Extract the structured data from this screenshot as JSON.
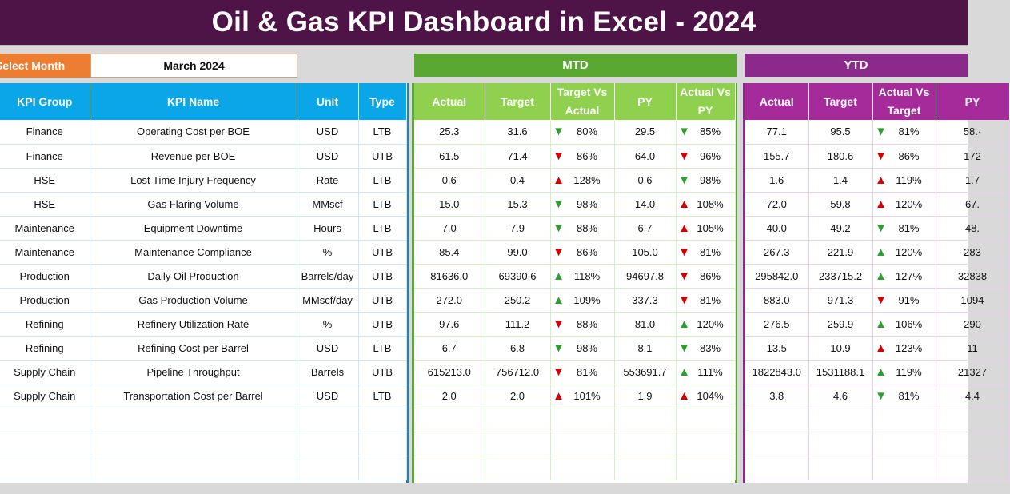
{
  "title": "Oil & Gas KPI Dashboard in Excel - 2024",
  "select_month": {
    "label": "Select Month",
    "value": "March 2024"
  },
  "sections": {
    "mtd": "MTD",
    "ytd": "YTD"
  },
  "left_headers": [
    "KPI Group",
    "KPI Name",
    "Unit",
    "Type"
  ],
  "mtd_headers": [
    "Actual",
    "Target",
    "Target Vs\nActual",
    "PY",
    "Actual Vs\nPY"
  ],
  "ytd_headers": [
    "Actual",
    "Target",
    "Actual Vs\nTarget",
    "PY"
  ],
  "colors": {
    "banner": "#4e1447",
    "select": "#ed7d31",
    "kpi_header": "#0aa6e8",
    "mtd": "#5aa832",
    "mtd_header": "#8fd14f",
    "ytd": "#8b2a8b",
    "up_arrow": "#2e9e2e",
    "down_arrow": "#d40000"
  },
  "rows": [
    {
      "group": "Finance",
      "name": "Operating Cost per BOE",
      "unit": "USD",
      "type": "LTB",
      "mtd": {
        "actual": "25.3",
        "target": "31.6",
        "tva_dir": "down",
        "tva_color": "green",
        "tva": "80%",
        "py": "29.5",
        "avp_dir": "down",
        "avp_color": "green",
        "avp": "85%"
      },
      "ytd": {
        "actual": "77.1",
        "target": "95.5",
        "avt_dir": "down",
        "avt_color": "green",
        "avt": "81%",
        "py": "58.·"
      }
    },
    {
      "group": "Finance",
      "name": "Revenue per BOE",
      "unit": "USD",
      "type": "UTB",
      "mtd": {
        "actual": "61.5",
        "target": "71.4",
        "tva_dir": "down",
        "tva_color": "red",
        "tva": "86%",
        "py": "64.0",
        "avp_dir": "down",
        "avp_color": "red",
        "avp": "96%"
      },
      "ytd": {
        "actual": "155.7",
        "target": "180.6",
        "avt_dir": "down",
        "avt_color": "red",
        "avt": "86%",
        "py": "172"
      }
    },
    {
      "group": "HSE",
      "name": "Lost Time Injury Frequency",
      "unit": "Rate",
      "type": "LTB",
      "mtd": {
        "actual": "0.6",
        "target": "0.4",
        "tva_dir": "up",
        "tva_color": "red",
        "tva": "128%",
        "py": "0.6",
        "avp_dir": "down",
        "avp_color": "green",
        "avp": "98%"
      },
      "ytd": {
        "actual": "1.6",
        "target": "1.4",
        "avt_dir": "up",
        "avt_color": "red",
        "avt": "119%",
        "py": "1.7"
      }
    },
    {
      "group": "HSE",
      "name": "Gas Flaring Volume",
      "unit": "MMscf",
      "type": "LTB",
      "mtd": {
        "actual": "15.0",
        "target": "15.3",
        "tva_dir": "down",
        "tva_color": "green",
        "tva": "98%",
        "py": "14.0",
        "avp_dir": "up",
        "avp_color": "red",
        "avp": "108%"
      },
      "ytd": {
        "actual": "72.0",
        "target": "59.8",
        "avt_dir": "up",
        "avt_color": "red",
        "avt": "120%",
        "py": "67."
      }
    },
    {
      "group": "Maintenance",
      "name": "Equipment Downtime",
      "unit": "Hours",
      "type": "LTB",
      "mtd": {
        "actual": "7.0",
        "target": "7.9",
        "tva_dir": "down",
        "tva_color": "green",
        "tva": "88%",
        "py": "6.7",
        "avp_dir": "up",
        "avp_color": "red",
        "avp": "105%"
      },
      "ytd": {
        "actual": "40.0",
        "target": "49.2",
        "avt_dir": "down",
        "avt_color": "green",
        "avt": "81%",
        "py": "48."
      }
    },
    {
      "group": "Maintenance",
      "name": "Maintenance Compliance",
      "unit": "%",
      "type": "UTB",
      "mtd": {
        "actual": "85.4",
        "target": "99.0",
        "tva_dir": "down",
        "tva_color": "red",
        "tva": "86%",
        "py": "105.0",
        "avp_dir": "down",
        "avp_color": "red",
        "avp": "81%"
      },
      "ytd": {
        "actual": "267.3",
        "target": "221.9",
        "avt_dir": "up",
        "avt_color": "green",
        "avt": "120%",
        "py": "283"
      }
    },
    {
      "group": "Production",
      "name": "Daily Oil Production",
      "unit": "Barrels/day",
      "type": "UTB",
      "mtd": {
        "actual": "81636.0",
        "target": "69390.6",
        "tva_dir": "up",
        "tva_color": "green",
        "tva": "118%",
        "py": "94697.8",
        "avp_dir": "down",
        "avp_color": "red",
        "avp": "86%"
      },
      "ytd": {
        "actual": "295842.0",
        "target": "233715.2",
        "avt_dir": "up",
        "avt_color": "green",
        "avt": "127%",
        "py": "32838"
      }
    },
    {
      "group": "Production",
      "name": "Gas Production Volume",
      "unit": "MMscf/day",
      "type": "UTB",
      "mtd": {
        "actual": "272.0",
        "target": "250.2",
        "tva_dir": "up",
        "tva_color": "green",
        "tva": "109%",
        "py": "337.3",
        "avp_dir": "down",
        "avp_color": "red",
        "avp": "81%"
      },
      "ytd": {
        "actual": "883.0",
        "target": "971.3",
        "avt_dir": "down",
        "avt_color": "red",
        "avt": "91%",
        "py": "1094"
      }
    },
    {
      "group": "Refining",
      "name": "Refinery Utilization Rate",
      "unit": "%",
      "type": "UTB",
      "mtd": {
        "actual": "97.6",
        "target": "111.2",
        "tva_dir": "down",
        "tva_color": "red",
        "tva": "88%",
        "py": "81.0",
        "avp_dir": "up",
        "avp_color": "green",
        "avp": "120%"
      },
      "ytd": {
        "actual": "276.5",
        "target": "259.9",
        "avt_dir": "up",
        "avt_color": "green",
        "avt": "106%",
        "py": "290"
      }
    },
    {
      "group": "Refining",
      "name": "Refining Cost per Barrel",
      "unit": "USD",
      "type": "LTB",
      "mtd": {
        "actual": "6.7",
        "target": "6.8",
        "tva_dir": "down",
        "tva_color": "green",
        "tva": "98%",
        "py": "8.1",
        "avp_dir": "down",
        "avp_color": "green",
        "avp": "83%"
      },
      "ytd": {
        "actual": "13.5",
        "target": "10.9",
        "avt_dir": "up",
        "avt_color": "red",
        "avt": "123%",
        "py": "11"
      }
    },
    {
      "group": "Supply Chain",
      "name": "Pipeline Throughput",
      "unit": "Barrels",
      "type": "UTB",
      "mtd": {
        "actual": "615213.0",
        "target": "756712.0",
        "tva_dir": "down",
        "tva_color": "red",
        "tva": "81%",
        "py": "553691.7",
        "avp_dir": "up",
        "avp_color": "green",
        "avp": "111%"
      },
      "ytd": {
        "actual": "1822843.0",
        "target": "1531188.1",
        "avt_dir": "up",
        "avt_color": "green",
        "avt": "119%",
        "py": "21327"
      }
    },
    {
      "group": "Supply Chain",
      "name": "Transportation Cost per Barrel",
      "unit": "USD",
      "type": "LTB",
      "mtd": {
        "actual": "2.0",
        "target": "2.0",
        "tva_dir": "up",
        "tva_color": "red",
        "tva": "101%",
        "py": "1.9",
        "avp_dir": "up",
        "avp_color": "red",
        "avp": "104%"
      },
      "ytd": {
        "actual": "3.8",
        "target": "4.6",
        "avt_dir": "down",
        "avt_color": "green",
        "avt": "81%",
        "py": "4.4"
      }
    }
  ]
}
